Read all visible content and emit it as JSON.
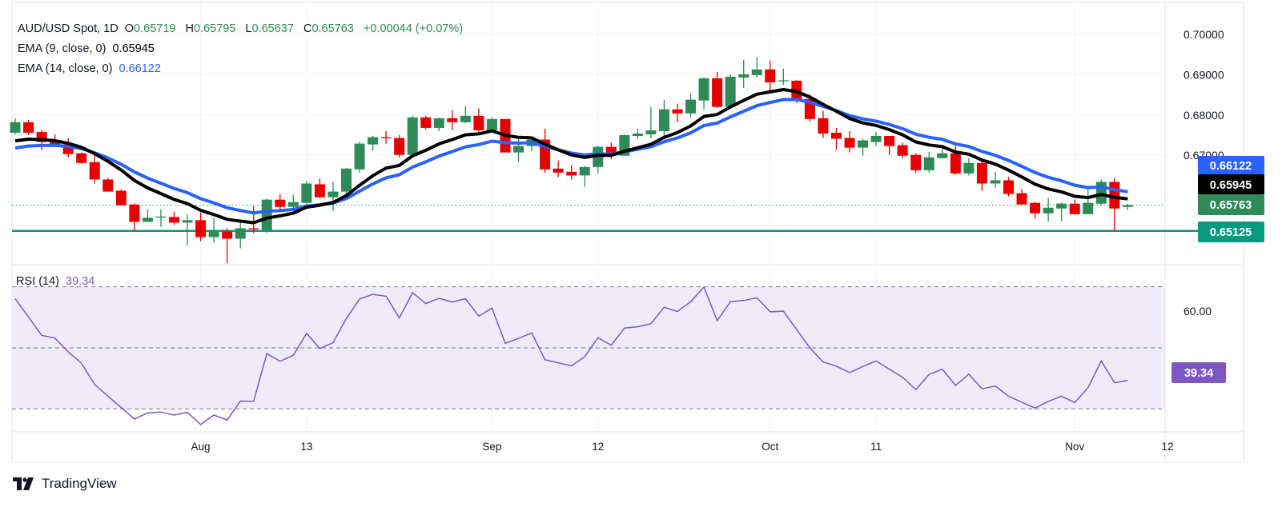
{
  "header": {
    "symbol": "AUD/USD Spot, 1D",
    "o_label": "O",
    "o": "0.65719",
    "h_label": "H",
    "h": "0.65795",
    "l_label": "L",
    "l": "0.65637",
    "c_label": "C",
    "c": "0.65763",
    "change": "+0.00044 (+0.07%)",
    "ema9_label": "EMA (9, close, 0)",
    "ema9_value": "0.65945",
    "ema14_label": "EMA (14, close, 0)",
    "ema14_value": "0.66122",
    "rsi_label": "RSI (14)",
    "rsi_value": "39.34"
  },
  "price_labels": {
    "ema14": "0.66122",
    "ema9": "0.65945",
    "close": "0.65763",
    "support": "0.65125"
  },
  "rsi_axis_label": "60.00",
  "rsi_badge": "39.34",
  "branding": "TradingView",
  "colors": {
    "up": "#2e8a57",
    "down": "#e60000",
    "ema9": "#000000",
    "ema14": "#2962ff",
    "support": "#089981",
    "rsi": "#7e57c2",
    "rsi_band": "#efebf8"
  },
  "chart_data": [
    {
      "type": "candlestick",
      "title": "AUD/USD Spot, 1D",
      "ylim": [
        0.642,
        0.703
      ],
      "y_ticks": [
        "0.70000",
        "0.69000",
        "0.68000",
        "0.67000"
      ],
      "x_ticks": [
        {
          "label": "Aug",
          "date": "2024-08-01"
        },
        {
          "label": "13",
          "date": "2024-08-13"
        },
        {
          "label": "Sep",
          "date": "2024-09-02"
        },
        {
          "label": "12",
          "date": "2024-09-12"
        },
        {
          "label": "Oct",
          "date": "2024-10-01"
        },
        {
          "label": "11",
          "date": "2024-10-11"
        },
        {
          "label": "Nov",
          "date": "2024-11-01"
        },
        {
          "label": "12",
          "date": "2024-11-12"
        }
      ],
      "dates": [
        "Jul 12",
        "Jul 15",
        "Jul 16",
        "Jul 17",
        "Jul 18",
        "Jul 19",
        "Jul 22",
        "Jul 23",
        "Jul 24",
        "Jul 25",
        "Jul 26",
        "Jul 29",
        "Jul 30",
        "Jul 31",
        "Aug 1",
        "Aug 2",
        "Aug 5",
        "Aug 6",
        "Aug 7",
        "Aug 8",
        "Aug 9",
        "Aug 12",
        "Aug 13",
        "Aug 14",
        "Aug 15",
        "Aug 16",
        "Aug 19",
        "Aug 20",
        "Aug 21",
        "Aug 22",
        "Aug 23",
        "Aug 26",
        "Aug 27",
        "Aug 28",
        "Aug 29",
        "Aug 30",
        "Sep 2",
        "Sep 3",
        "Sep 4",
        "Sep 5",
        "Sep 6",
        "Sep 9",
        "Sep 10",
        "Sep 11",
        "Sep 12",
        "Sep 13",
        "Sep 16",
        "Sep 17",
        "Sep 18",
        "Sep 19",
        "Sep 20",
        "Sep 23",
        "Sep 24",
        "Sep 25",
        "Sep 26",
        "Sep 27",
        "Sep 30",
        "Oct 1",
        "Oct 2",
        "Oct 3",
        "Oct 4",
        "Oct 7",
        "Oct 8",
        "Oct 9",
        "Oct 10",
        "Oct 11",
        "Oct 14",
        "Oct 15",
        "Oct 16",
        "Oct 17",
        "Oct 18",
        "Oct 21",
        "Oct 22",
        "Oct 23",
        "Oct 24",
        "Oct 25",
        "Oct 28",
        "Oct 29",
        "Oct 30",
        "Oct 31",
        "Nov 1",
        "Nov 4",
        "Nov 5",
        "Nov 6",
        "Nov 7"
      ],
      "ohlc": [
        [
          0.6756,
          0.6792,
          0.6752,
          0.6782
        ],
        [
          0.6782,
          0.6788,
          0.675,
          0.6756
        ],
        [
          0.6758,
          0.6762,
          0.6713,
          0.6733
        ],
        [
          0.6733,
          0.6752,
          0.6721,
          0.6727
        ],
        [
          0.6727,
          0.6743,
          0.6695,
          0.6703
        ],
        [
          0.6705,
          0.6707,
          0.6679,
          0.6681
        ],
        [
          0.6683,
          0.6703,
          0.663,
          0.664
        ],
        [
          0.664,
          0.6644,
          0.661,
          0.661
        ],
        [
          0.6612,
          0.6616,
          0.6576,
          0.6576
        ],
        [
          0.6578,
          0.658,
          0.6511,
          0.6535
        ],
        [
          0.6535,
          0.6566,
          0.6535,
          0.6545
        ],
        [
          0.6547,
          0.6566,
          0.6523,
          0.6548
        ],
        [
          0.6547,
          0.656,
          0.6527,
          0.6533
        ],
        [
          0.6533,
          0.6554,
          0.6477,
          0.6539
        ],
        [
          0.6539,
          0.6558,
          0.6487,
          0.6497
        ],
        [
          0.6497,
          0.6545,
          0.6483,
          0.6511
        ],
        [
          0.6511,
          0.6519,
          0.6432,
          0.6493
        ],
        [
          0.6493,
          0.6539,
          0.6469,
          0.6519
        ],
        [
          0.6519,
          0.6574,
          0.6507,
          0.6517
        ],
        [
          0.6515,
          0.6592,
          0.6507,
          0.659
        ],
        [
          0.659,
          0.6604,
          0.6564,
          0.6572
        ],
        [
          0.6572,
          0.6602,
          0.6566,
          0.6584
        ],
        [
          0.6582,
          0.6636,
          0.6576,
          0.663
        ],
        [
          0.6628,
          0.6642,
          0.6594,
          0.6596
        ],
        [
          0.6596,
          0.6634,
          0.6562,
          0.661
        ],
        [
          0.661,
          0.6669,
          0.6602,
          0.6667
        ],
        [
          0.6665,
          0.6733,
          0.6657,
          0.6729
        ],
        [
          0.6727,
          0.6748,
          0.6711,
          0.6745
        ],
        [
          0.6745,
          0.676,
          0.6729,
          0.6743
        ],
        [
          0.6743,
          0.675,
          0.6695,
          0.6701
        ],
        [
          0.6701,
          0.6798,
          0.6701,
          0.6794
        ],
        [
          0.6794,
          0.6798,
          0.6764,
          0.6768
        ],
        [
          0.6768,
          0.6794,
          0.676,
          0.6792
        ],
        [
          0.6792,
          0.6812,
          0.6762,
          0.6782
        ],
        [
          0.6782,
          0.6822,
          0.678,
          0.6798
        ],
        [
          0.6798,
          0.6816,
          0.675,
          0.6762
        ],
        [
          0.6762,
          0.6794,
          0.676,
          0.679
        ],
        [
          0.679,
          0.679,
          0.6707,
          0.6707
        ],
        [
          0.6707,
          0.6748,
          0.6683,
          0.6723
        ],
        [
          0.6723,
          0.674,
          0.6711,
          0.6739
        ],
        [
          0.6739,
          0.6766,
          0.6657,
          0.6665
        ],
        [
          0.6667,
          0.6687,
          0.6646,
          0.6657
        ],
        [
          0.6659,
          0.6675,
          0.664,
          0.665
        ],
        [
          0.665,
          0.6673,
          0.6622,
          0.6671
        ],
        [
          0.6671,
          0.6723,
          0.6655,
          0.6721
        ],
        [
          0.6721,
          0.6731,
          0.6691,
          0.6699
        ],
        [
          0.6699,
          0.6752,
          0.6699,
          0.675
        ],
        [
          0.6748,
          0.6766,
          0.6741,
          0.6754
        ],
        [
          0.6752,
          0.682,
          0.6743,
          0.6762
        ],
        [
          0.676,
          0.6838,
          0.6739,
          0.6814
        ],
        [
          0.6814,
          0.6828,
          0.6782,
          0.6804
        ],
        [
          0.6804,
          0.6853,
          0.6794,
          0.6838
        ],
        [
          0.6836,
          0.6893,
          0.6814,
          0.6891
        ],
        [
          0.6891,
          0.6907,
          0.6818,
          0.682
        ],
        [
          0.682,
          0.6901,
          0.682,
          0.6895
        ],
        [
          0.6893,
          0.6937,
          0.6867,
          0.6901
        ],
        [
          0.6899,
          0.6943,
          0.6893,
          0.6913
        ],
        [
          0.6913,
          0.6935,
          0.6857,
          0.6881
        ],
        [
          0.6885,
          0.6915,
          0.6875,
          0.6886
        ],
        [
          0.6885,
          0.6887,
          0.683,
          0.6838
        ],
        [
          0.684,
          0.6851,
          0.6784,
          0.679
        ],
        [
          0.6792,
          0.681,
          0.6743,
          0.6754
        ],
        [
          0.6756,
          0.6768,
          0.6713,
          0.6741
        ],
        [
          0.6743,
          0.676,
          0.6707,
          0.6719
        ],
        [
          0.6719,
          0.6741,
          0.6699,
          0.6737
        ],
        [
          0.6733,
          0.6758,
          0.6723,
          0.6748
        ],
        [
          0.6748,
          0.6748,
          0.6701,
          0.6723
        ],
        [
          0.6725,
          0.6731,
          0.6693,
          0.6699
        ],
        [
          0.6701,
          0.6705,
          0.6657,
          0.6663
        ],
        [
          0.6663,
          0.6709,
          0.6657,
          0.6695
        ],
        [
          0.6693,
          0.6719,
          0.6693,
          0.6705
        ],
        [
          0.6705,
          0.6723,
          0.6652,
          0.6655
        ],
        [
          0.6655,
          0.6693,
          0.665,
          0.6681
        ],
        [
          0.6681,
          0.6687,
          0.6612,
          0.663
        ],
        [
          0.663,
          0.6659,
          0.662,
          0.6638
        ],
        [
          0.6638,
          0.6646,
          0.6598,
          0.6604
        ],
        [
          0.6606,
          0.6616,
          0.6578,
          0.6578
        ],
        [
          0.6582,
          0.6584,
          0.6543,
          0.6556
        ],
        [
          0.6556,
          0.6594,
          0.6535,
          0.657
        ],
        [
          0.6568,
          0.6582,
          0.6537,
          0.658
        ],
        [
          0.658,
          0.659,
          0.6553,
          0.6554
        ],
        [
          0.6554,
          0.662,
          0.6554,
          0.6582
        ],
        [
          0.658,
          0.664,
          0.6576,
          0.6634
        ],
        [
          0.6634,
          0.6644,
          0.6512,
          0.6568
        ],
        [
          0.65719,
          0.65795,
          0.65637,
          0.65763
        ]
      ],
      "series": [
        {
          "name": "EMA (9, close, 0)",
          "start": 0.6736,
          "period": 9,
          "last": 0.65945
        },
        {
          "name": "EMA (14, close, 0)",
          "start": 0.6718,
          "period": 14,
          "last": 0.66122
        }
      ],
      "support_level": 0.65125,
      "grid": true
    },
    {
      "type": "line",
      "title": "RSI (14)",
      "ylim": [
        22,
        75
      ],
      "bands": [
        30,
        50,
        70
      ],
      "y_ticks": [
        "60.00"
      ],
      "values": [
        66.1,
        60.1,
        54.1,
        53.2,
        48.7,
        45.0,
        38.0,
        34.2,
        30.5,
        26.7,
        28.7,
        29.0,
        28.0,
        28.9,
        24.9,
        28.0,
        26.4,
        32.6,
        32.5,
        48.1,
        45.6,
        47.6,
        54.7,
        49.8,
        51.7,
        59.6,
        66.0,
        67.5,
        66.9,
        59.8,
        68.1,
        64.5,
        66.2,
        65.0,
        66.1,
        60.4,
        63.0,
        51.5,
        53.1,
        54.9,
        46.1,
        45.1,
        44.1,
        47.1,
        53.3,
        50.9,
        56.5,
        56.9,
        57.9,
        63.3,
        61.9,
        65.1,
        69.9,
        58.9,
        65.1,
        65.5,
        66.4,
        61.8,
        62.0,
        56.0,
        50.0,
        45.4,
        44.0,
        41.9,
        43.9,
        45.7,
        43.0,
        40.4,
        36.3,
        41.3,
        43.0,
        37.7,
        41.4,
        36.6,
        37.5,
        34.2,
        32.2,
        30.3,
        32.5,
        34.2,
        32.1,
        37.0,
        45.7,
        38.6,
        39.34
      ]
    }
  ]
}
